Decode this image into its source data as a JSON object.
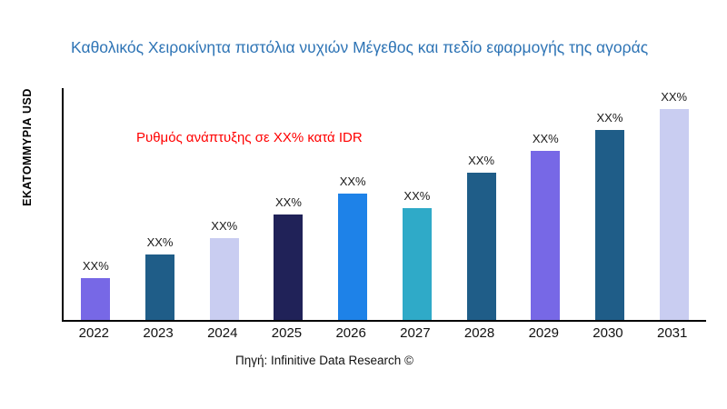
{
  "title": "Καθολικός Χειροκίνητα πιστόλια νυχιών Μέγεθος και πεδίο εφαρμογής της αγοράς",
  "ylabel": "ΕΚΑΤΟΜΜΥΡΙΑ USD",
  "annotation": "Ρυθμός ανάπτυξης σε XX% κατά IDR",
  "source": "Πηγή: Infinitive Data Research ©",
  "colors": {
    "title": "#2E74B5",
    "annotation": "#FF0000",
    "axis": "#000000"
  },
  "chart_data": {
    "type": "bar",
    "title": "Καθολικός Χειροκίνητα πιστόλια νυχιών Μέγεθος και πεδίο εφαρμογής της αγοράς",
    "xlabel": "",
    "ylabel": "ΕΚΑΤΟΜΜΥΡΙΑ USD",
    "categories": [
      "2022",
      "2023",
      "2024",
      "2025",
      "2026",
      "2027",
      "2028",
      "2029",
      "2030",
      "2031"
    ],
    "values": [
      20,
      31,
      39,
      50,
      60,
      53,
      70,
      80,
      90,
      100
    ],
    "values_note": "actual figures masked in image as XX%; values are estimated relative heights (% of tallest bar)",
    "bar_labels": [
      "XX%",
      "XX%",
      "XX%",
      "XX%",
      "XX%",
      "XX%",
      "XX%",
      "XX%",
      "XX%",
      "XX%"
    ],
    "bar_colors": [
      "#7768E6",
      "#1F5D88",
      "#C9CDF1",
      "#202258",
      "#1E82E8",
      "#2FAAC8",
      "#1F5D88",
      "#7768E6",
      "#1F5D88",
      "#C9CDF1"
    ],
    "ylim": [
      0,
      100
    ],
    "grid": false,
    "legend": "none",
    "annotations": [
      "Ρυθμός ανάπτυξης σε XX% κατά IDR"
    ]
  }
}
